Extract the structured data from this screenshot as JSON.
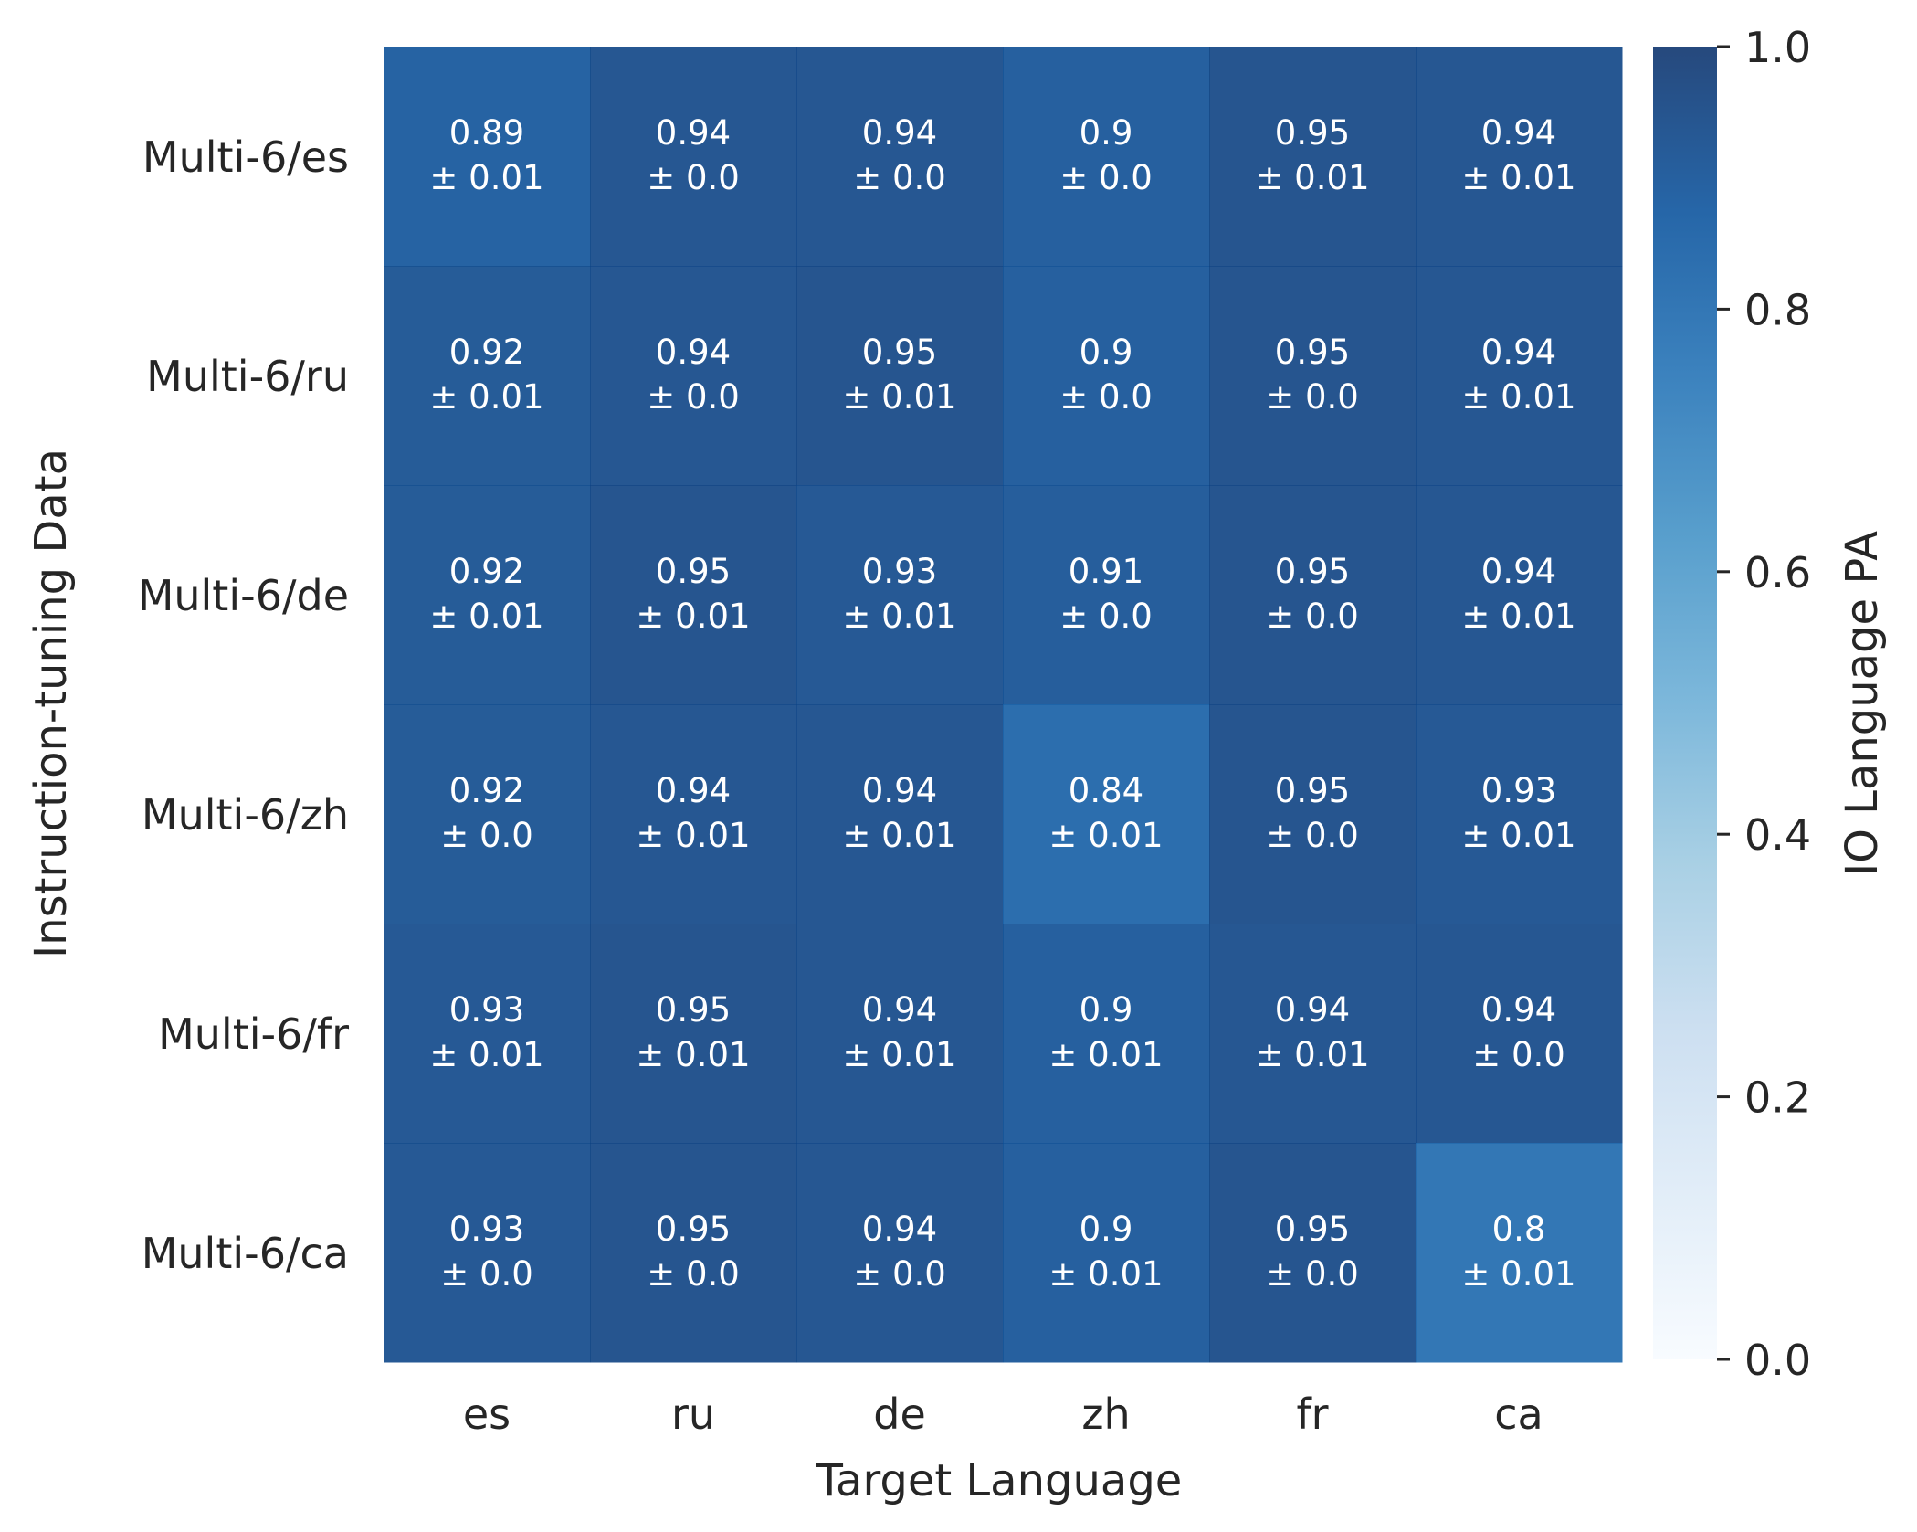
{
  "chart_data": {
    "type": "heatmap",
    "xlabel": "Target Language",
    "ylabel": "Instruction-tuning Data",
    "x_categories": [
      "es",
      "ru",
      "de",
      "zh",
      "fr",
      "ca"
    ],
    "y_categories": [
      "Multi-6/es",
      "Multi-6/ru",
      "Multi-6/de",
      "Multi-6/zh",
      "Multi-6/fr",
      "Multi-6/ca"
    ],
    "values": [
      [
        0.89,
        0.94,
        0.94,
        0.9,
        0.95,
        0.94
      ],
      [
        0.92,
        0.94,
        0.95,
        0.9,
        0.95,
        0.94
      ],
      [
        0.92,
        0.95,
        0.93,
        0.91,
        0.95,
        0.94
      ],
      [
        0.92,
        0.94,
        0.94,
        0.84,
        0.95,
        0.93
      ],
      [
        0.93,
        0.95,
        0.94,
        0.9,
        0.94,
        0.94
      ],
      [
        0.93,
        0.95,
        0.94,
        0.9,
        0.95,
        0.8
      ]
    ],
    "cell_text": [
      [
        [
          "0.89",
          "± 0.01"
        ],
        [
          "0.94",
          "± 0.0"
        ],
        [
          "0.94",
          "± 0.0"
        ],
        [
          "0.9",
          "± 0.0"
        ],
        [
          "0.95",
          "± 0.01"
        ],
        [
          "0.94",
          "± 0.01"
        ]
      ],
      [
        [
          "0.92",
          "± 0.01"
        ],
        [
          "0.94",
          "± 0.0"
        ],
        [
          "0.95",
          "± 0.01"
        ],
        [
          "0.9",
          "± 0.0"
        ],
        [
          "0.95",
          "± 0.0"
        ],
        [
          "0.94",
          "± 0.01"
        ]
      ],
      [
        [
          "0.92",
          "± 0.01"
        ],
        [
          "0.95",
          "± 0.01"
        ],
        [
          "0.93",
          "± 0.01"
        ],
        [
          "0.91",
          "± 0.0"
        ],
        [
          "0.95",
          "± 0.0"
        ],
        [
          "0.94",
          "± 0.01"
        ]
      ],
      [
        [
          "0.92",
          "± 0.0"
        ],
        [
          "0.94",
          "± 0.01"
        ],
        [
          "0.94",
          "± 0.01"
        ],
        [
          "0.84",
          "± 0.01"
        ],
        [
          "0.95",
          "± 0.0"
        ],
        [
          "0.93",
          "± 0.01"
        ]
      ],
      [
        [
          "0.93",
          "± 0.01"
        ],
        [
          "0.95",
          "± 0.01"
        ],
        [
          "0.94",
          "± 0.01"
        ],
        [
          "0.9",
          "± 0.01"
        ],
        [
          "0.94",
          "± 0.01"
        ],
        [
          "0.94",
          "± 0.0"
        ]
      ],
      [
        [
          "0.93",
          "± 0.0"
        ],
        [
          "0.95",
          "± 0.0"
        ],
        [
          "0.94",
          "± 0.0"
        ],
        [
          "0.9",
          "± 0.01"
        ],
        [
          "0.95",
          "± 0.0"
        ],
        [
          "0.8",
          "± 0.01"
        ]
      ]
    ],
    "colorbar": {
      "label": "IO Language PA",
      "range": [
        0.0,
        1.0
      ],
      "ticks": [
        "0.0",
        "0.2",
        "0.4",
        "0.6",
        "0.8",
        "1.0"
      ],
      "colormap": "Blues"
    },
    "grid": false
  }
}
